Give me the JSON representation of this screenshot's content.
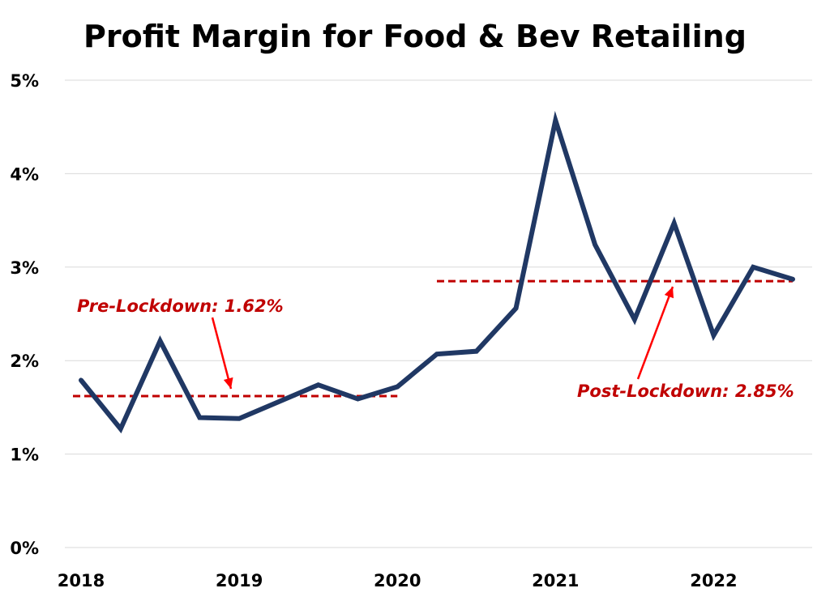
{
  "chart_data": {
    "type": "line",
    "title": "Profit Margin for Food & Bev Retailing",
    "xlabel": "",
    "ylabel": "",
    "x": [
      2018.0,
      2018.25,
      2018.5,
      2018.75,
      2019.0,
      2019.25,
      2019.5,
      2019.75,
      2020.0,
      2020.25,
      2020.5,
      2020.75,
      2021.0,
      2021.25,
      2021.5,
      2021.75,
      2022.0,
      2022.25,
      2022.5
    ],
    "series": [
      {
        "values": [
          1.79,
          1.27,
          2.21,
          1.39,
          1.38,
          1.56,
          1.74,
          1.59,
          1.72,
          2.07,
          2.1,
          2.56,
          4.57,
          3.24,
          2.44,
          3.47,
          2.27,
          3.0,
          2.87
        ],
        "color": "#203864"
      }
    ],
    "ylim": [
      0,
      5
    ],
    "xlim": [
      2018,
      2022.5
    ],
    "y_ticks": [
      "0%",
      "1%",
      "2%",
      "3%",
      "4%",
      "5%"
    ],
    "x_ticks": [
      "2018",
      "2019",
      "2020",
      "2021",
      "2022"
    ],
    "grid": true,
    "reference_lines": [
      {
        "label": "Pre-Lockdown: 1.62%",
        "value": 1.62,
        "x_range": [
          2018,
          2020
        ],
        "color": "#c00000"
      },
      {
        "label": "Post-Lockdown: 2.85%",
        "value": 2.85,
        "x_range": [
          2020.25,
          2022.5
        ],
        "color": "#c00000"
      }
    ],
    "arrow_color": "#ff0000"
  }
}
